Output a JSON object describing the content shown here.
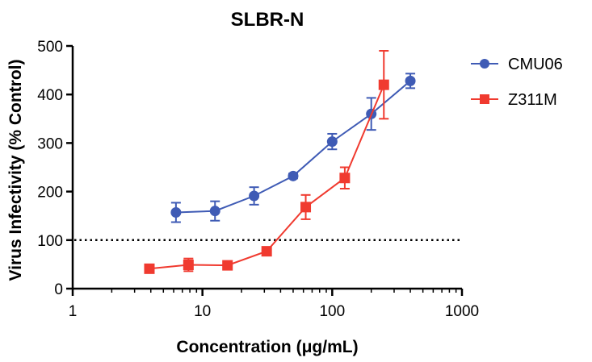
{
  "chart_data": {
    "type": "line",
    "title": "SLBR-N",
    "xlabel": "Concentration (μg/mL)",
    "ylabel": "Virus Infectivity (% Control)",
    "xscale": "log",
    "xlim": [
      1,
      1000
    ],
    "ylim": [
      0,
      500
    ],
    "xticks": [
      1,
      10,
      100,
      1000
    ],
    "xtick_labels": [
      "1",
      "10",
      "100",
      "1000"
    ],
    "yticks": [
      0,
      100,
      200,
      300,
      400,
      500
    ],
    "ytick_labels": [
      "0",
      "100",
      "200",
      "300",
      "400",
      "500"
    ],
    "reference_line": {
      "y": 100,
      "style": "dotted"
    },
    "legend_position": "top-right",
    "series": [
      {
        "name": "CMU06",
        "color": "#3f5bb5",
        "marker": "circle",
        "x": [
          6.25,
          12.5,
          25,
          50,
          100,
          200,
          400
        ],
        "y": [
          157,
          160,
          191,
          232,
          303,
          360,
          428
        ],
        "err": [
          20,
          20,
          18,
          5,
          16,
          33,
          15
        ]
      },
      {
        "name": "Z311M",
        "color": "#f03a2f",
        "marker": "square",
        "x": [
          3.9,
          7.8,
          15.6,
          31.25,
          62.5,
          125,
          250
        ],
        "y": [
          41,
          49,
          48,
          77,
          168,
          228,
          420
        ],
        "err": [
          4,
          13,
          5,
          4,
          25,
          22,
          70
        ]
      }
    ]
  }
}
